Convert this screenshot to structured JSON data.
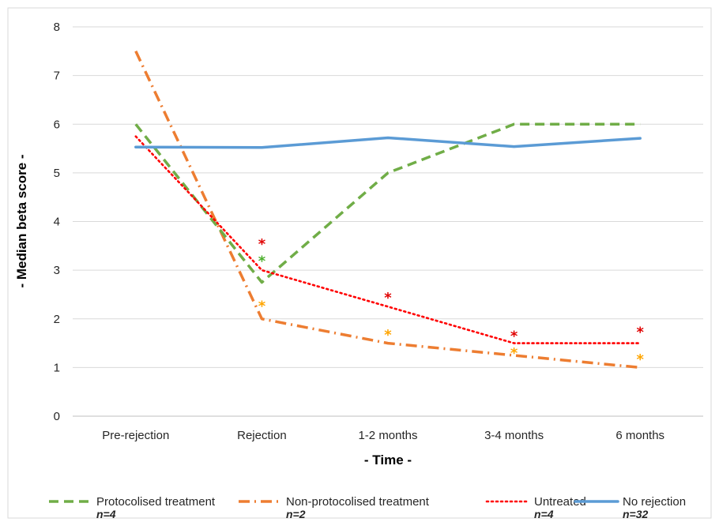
{
  "chart_data": {
    "type": "line",
    "categories": [
      "Pre-rejection",
      "Rejection",
      "1-2 months",
      "3-4 months",
      "6 months"
    ],
    "xlabel": "- Time -",
    "ylabel": "- Median beta score -",
    "ylim": [
      0,
      8
    ],
    "yticks": [
      "0",
      "1",
      "2",
      "3",
      "4",
      "5",
      "6",
      "7",
      "8"
    ],
    "grid": "horizontal",
    "legend_position": "bottom",
    "series": [
      {
        "name": "Protocolised treatment",
        "n_label": "n=4",
        "color": "#70ad47",
        "dash": "dashed",
        "values": [
          6.0,
          2.75,
          5.0,
          6.0,
          6.0
        ],
        "stars": [
          null,
          3.22,
          null,
          null,
          null
        ],
        "star_color": "#4caf2c"
      },
      {
        "name": "Non-protocolised treatment",
        "n_label": "n=2",
        "color": "#ed7d31",
        "dash": "dash-dot",
        "values": [
          7.5,
          2.0,
          1.5,
          1.25,
          1.0
        ],
        "stars": [
          null,
          2.3,
          1.7,
          1.33,
          1.2
        ],
        "star_color": "#ffa500"
      },
      {
        "name": "Untreated",
        "n_label": "n=4",
        "color": "#ff0000",
        "dash": "dotted",
        "values": [
          5.75,
          3.0,
          2.25,
          1.5,
          1.5
        ],
        "stars": [
          null,
          3.57,
          2.47,
          1.68,
          1.76
        ],
        "star_color": "#e00000"
      },
      {
        "name": "No rejection",
        "n_label": "n=32",
        "color": "#5b9bd5",
        "dash": "solid",
        "values": [
          5.53,
          5.52,
          5.72,
          5.54,
          5.71
        ],
        "stars": [
          null,
          null,
          null,
          null,
          null
        ],
        "star_color": "#5b9bd5"
      }
    ],
    "star_symbol": "*"
  }
}
